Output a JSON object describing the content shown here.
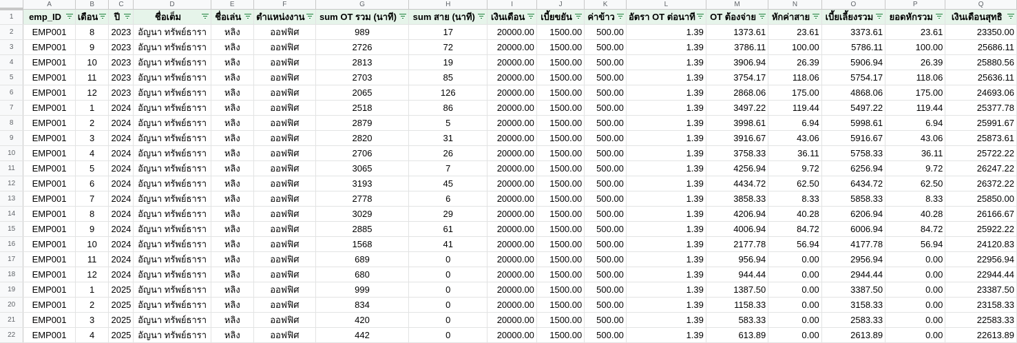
{
  "column_letters": [
    "A",
    "B",
    "C",
    "D",
    "E",
    "F",
    "G",
    "H",
    "I",
    "J",
    "K",
    "L",
    "M",
    "N",
    "O",
    "P",
    "Q"
  ],
  "headers": [
    "emp_ID",
    "เดือน",
    "ปี",
    "ชื่อเต็ม",
    "ชื่อเล่น",
    "ตำแหน่งงาน",
    "sum OT รวม (นาที)",
    "sum สาย (นาที)",
    "เงินเดือน",
    "เบี้ยขยัน",
    "ค่าข้าว",
    "อัตรา OT ต่อนาที",
    "OT ต้องจ่าย",
    "หักค่าสาย",
    "เบี้ยเลี้ยงรวม",
    "ยอดหักรวม",
    "เงินเดือนสุทธิ"
  ],
  "header_row_number": "1",
  "rows": [
    {
      "n": "2",
      "cells": [
        "EMP001",
        "8",
        "2023",
        "อัญนา ทรัพย์ธารา",
        "หลิง",
        "ออฟฟิศ",
        "989",
        "17",
        "20000.00",
        "1500.00",
        "500.00",
        "1.39",
        "1373.61",
        "23.61",
        "3373.61",
        "23.61",
        "23350.00"
      ]
    },
    {
      "n": "3",
      "cells": [
        "EMP001",
        "9",
        "2023",
        "อัญนา ทรัพย์ธารา",
        "หลิง",
        "ออฟฟิศ",
        "2726",
        "72",
        "20000.00",
        "1500.00",
        "500.00",
        "1.39",
        "3786.11",
        "100.00",
        "5786.11",
        "100.00",
        "25686.11"
      ]
    },
    {
      "n": "4",
      "cells": [
        "EMP001",
        "10",
        "2023",
        "อัญนา ทรัพย์ธารา",
        "หลิง",
        "ออฟฟิศ",
        "2813",
        "19",
        "20000.00",
        "1500.00",
        "500.00",
        "1.39",
        "3906.94",
        "26.39",
        "5906.94",
        "26.39",
        "25880.56"
      ]
    },
    {
      "n": "5",
      "cells": [
        "EMP001",
        "11",
        "2023",
        "อัญนา ทรัพย์ธารา",
        "หลิง",
        "ออฟฟิศ",
        "2703",
        "85",
        "20000.00",
        "1500.00",
        "500.00",
        "1.39",
        "3754.17",
        "118.06",
        "5754.17",
        "118.06",
        "25636.11"
      ]
    },
    {
      "n": "6",
      "cells": [
        "EMP001",
        "12",
        "2023",
        "อัญนา ทรัพย์ธารา",
        "หลิง",
        "ออฟฟิศ",
        "2065",
        "126",
        "20000.00",
        "1500.00",
        "500.00",
        "1.39",
        "2868.06",
        "175.00",
        "4868.06",
        "175.00",
        "24693.06"
      ]
    },
    {
      "n": "7",
      "cells": [
        "EMP001",
        "1",
        "2024",
        "อัญนา ทรัพย์ธารา",
        "หลิง",
        "ออฟฟิศ",
        "2518",
        "86",
        "20000.00",
        "1500.00",
        "500.00",
        "1.39",
        "3497.22",
        "119.44",
        "5497.22",
        "119.44",
        "25377.78"
      ]
    },
    {
      "n": "8",
      "cells": [
        "EMP001",
        "2",
        "2024",
        "อัญนา ทรัพย์ธารา",
        "หลิง",
        "ออฟฟิศ",
        "2879",
        "5",
        "20000.00",
        "1500.00",
        "500.00",
        "1.39",
        "3998.61",
        "6.94",
        "5998.61",
        "6.94",
        "25991.67"
      ]
    },
    {
      "n": "9",
      "cells": [
        "EMP001",
        "3",
        "2024",
        "อัญนา ทรัพย์ธารา",
        "หลิง",
        "ออฟฟิศ",
        "2820",
        "31",
        "20000.00",
        "1500.00",
        "500.00",
        "1.39",
        "3916.67",
        "43.06",
        "5916.67",
        "43.06",
        "25873.61"
      ]
    },
    {
      "n": "10",
      "cells": [
        "EMP001",
        "4",
        "2024",
        "อัญนา ทรัพย์ธารา",
        "หลิง",
        "ออฟฟิศ",
        "2706",
        "26",
        "20000.00",
        "1500.00",
        "500.00",
        "1.39",
        "3758.33",
        "36.11",
        "5758.33",
        "36.11",
        "25722.22"
      ]
    },
    {
      "n": "11",
      "cells": [
        "EMP001",
        "5",
        "2024",
        "อัญนา ทรัพย์ธารา",
        "หลิง",
        "ออฟฟิศ",
        "3065",
        "7",
        "20000.00",
        "1500.00",
        "500.00",
        "1.39",
        "4256.94",
        "9.72",
        "6256.94",
        "9.72",
        "26247.22"
      ]
    },
    {
      "n": "12",
      "cells": [
        "EMP001",
        "6",
        "2024",
        "อัญนา ทรัพย์ธารา",
        "หลิง",
        "ออฟฟิศ",
        "3193",
        "45",
        "20000.00",
        "1500.00",
        "500.00",
        "1.39",
        "4434.72",
        "62.50",
        "6434.72",
        "62.50",
        "26372.22"
      ]
    },
    {
      "n": "13",
      "cells": [
        "EMP001",
        "7",
        "2024",
        "อัญนา ทรัพย์ธารา",
        "หลิง",
        "ออฟฟิศ",
        "2778",
        "6",
        "20000.00",
        "1500.00",
        "500.00",
        "1.39",
        "3858.33",
        "8.33",
        "5858.33",
        "8.33",
        "25850.00"
      ]
    },
    {
      "n": "14",
      "cells": [
        "EMP001",
        "8",
        "2024",
        "อัญนา ทรัพย์ธารา",
        "หลิง",
        "ออฟฟิศ",
        "3029",
        "29",
        "20000.00",
        "1500.00",
        "500.00",
        "1.39",
        "4206.94",
        "40.28",
        "6206.94",
        "40.28",
        "26166.67"
      ]
    },
    {
      "n": "15",
      "cells": [
        "EMP001",
        "9",
        "2024",
        "อัญนา ทรัพย์ธารา",
        "หลิง",
        "ออฟฟิศ",
        "2885",
        "61",
        "20000.00",
        "1500.00",
        "500.00",
        "1.39",
        "4006.94",
        "84.72",
        "6006.94",
        "84.72",
        "25922.22"
      ]
    },
    {
      "n": "16",
      "cells": [
        "EMP001",
        "10",
        "2024",
        "อัญนา ทรัพย์ธารา",
        "หลิง",
        "ออฟฟิศ",
        "1568",
        "41",
        "20000.00",
        "1500.00",
        "500.00",
        "1.39",
        "2177.78",
        "56.94",
        "4177.78",
        "56.94",
        "24120.83"
      ]
    },
    {
      "n": "17",
      "cells": [
        "EMP001",
        "11",
        "2024",
        "อัญนา ทรัพย์ธารา",
        "หลิง",
        "ออฟฟิศ",
        "689",
        "0",
        "20000.00",
        "1500.00",
        "500.00",
        "1.39",
        "956.94",
        "0.00",
        "2956.94",
        "0.00",
        "22956.94"
      ]
    },
    {
      "n": "18",
      "cells": [
        "EMP001",
        "12",
        "2024",
        "อัญนา ทรัพย์ธารา",
        "หลิง",
        "ออฟฟิศ",
        "680",
        "0",
        "20000.00",
        "1500.00",
        "500.00",
        "1.39",
        "944.44",
        "0.00",
        "2944.44",
        "0.00",
        "22944.44"
      ]
    },
    {
      "n": "19",
      "cells": [
        "EMP001",
        "1",
        "2025",
        "อัญนา ทรัพย์ธารา",
        "หลิง",
        "ออฟฟิศ",
        "999",
        "0",
        "20000.00",
        "1500.00",
        "500.00",
        "1.39",
        "1387.50",
        "0.00",
        "3387.50",
        "0.00",
        "23387.50"
      ]
    },
    {
      "n": "20",
      "cells": [
        "EMP001",
        "2",
        "2025",
        "อัญนา ทรัพย์ธารา",
        "หลิง",
        "ออฟฟิศ",
        "834",
        "0",
        "20000.00",
        "1500.00",
        "500.00",
        "1.39",
        "1158.33",
        "0.00",
        "3158.33",
        "0.00",
        "23158.33"
      ]
    },
    {
      "n": "21",
      "cells": [
        "EMP001",
        "3",
        "2025",
        "อัญนา ทรัพย์ธารา",
        "หลิง",
        "ออฟฟิศ",
        "420",
        "0",
        "20000.00",
        "1500.00",
        "500.00",
        "1.39",
        "583.33",
        "0.00",
        "2583.33",
        "0.00",
        "22583.33"
      ]
    },
    {
      "n": "22",
      "cells": [
        "EMP001",
        "4",
        "2025",
        "อัญนา ทรัพย์ธารา",
        "หลิง",
        "ออฟฟิศ",
        "442",
        "0",
        "20000.00",
        "1500.00",
        "500.00",
        "1.39",
        "613.89",
        "0.00",
        "2613.89",
        "0.00",
        "22613.89"
      ]
    }
  ],
  "colors": {
    "header_fill": "#e6f4ea",
    "filter_icon": "#188038",
    "grid_line": "#e2e3e3",
    "chrome_fill": "#f8f9fa"
  }
}
